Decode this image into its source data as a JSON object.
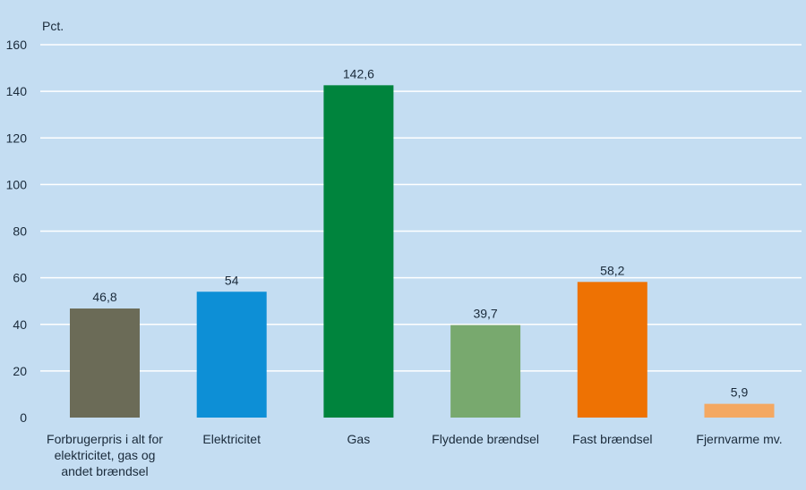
{
  "chart_data": {
    "type": "bar",
    "title": "",
    "ylabel": "Pct.",
    "xlabel": "",
    "ylim": [
      0,
      160
    ],
    "yticks": [
      0,
      20,
      40,
      60,
      80,
      100,
      120,
      140,
      160
    ],
    "grid": true,
    "categories": [
      [
        "Forbrugerpris i alt for",
        "elektricitet, gas og",
        "andet brændsel"
      ],
      [
        "Elektricitet"
      ],
      [
        "Gas"
      ],
      [
        "Flydende brændsel"
      ],
      [
        "Fast brændsel"
      ],
      [
        "Fjernvarme mv."
      ]
    ],
    "values": [
      46.8,
      54,
      142.6,
      39.7,
      58.2,
      5.9
    ],
    "value_labels": [
      "46,8",
      "54",
      "142,6",
      "39,7",
      "58,2",
      "5,9"
    ],
    "colors": [
      "#6b6b57",
      "#0d8fd6",
      "#00843d",
      "#78a96e",
      "#ee7203",
      "#f4a862"
    ],
    "background": "#c4ddf2",
    "grid_color": "#ffffff"
  }
}
